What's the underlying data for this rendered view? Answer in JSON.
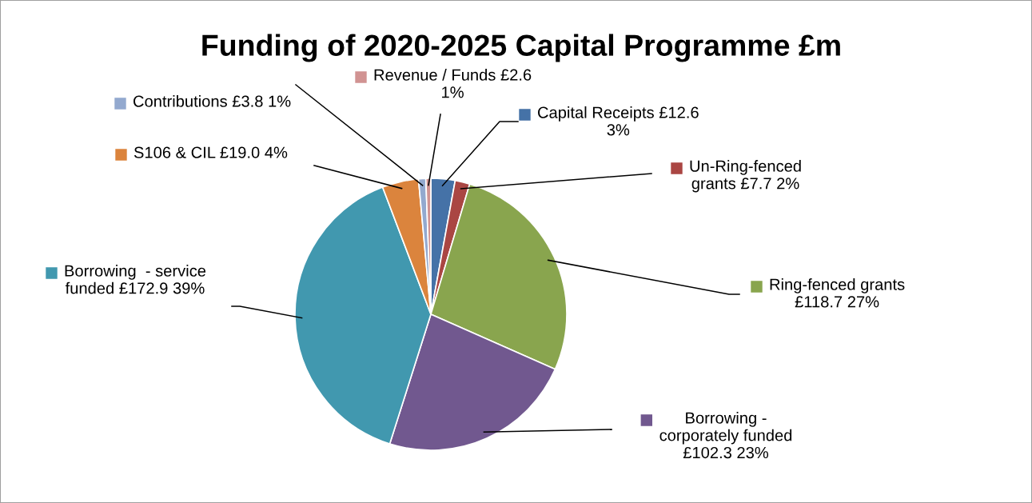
{
  "chart_data": {
    "type": "pie",
    "title": "Funding of 2020-2025 Capital Programme £m",
    "categories": [
      "Capital Receipts",
      "Un-Ring-fenced\ngrants",
      "Ring-fenced grants",
      "Borrowing -\ncorporately funded",
      "Borrowing  - service\nfunded",
      "S106 & CIL",
      "Contributions",
      "Revenue / Funds"
    ],
    "values": [
      12.6,
      7.7,
      118.7,
      102.3,
      172.9,
      19.0,
      3.8,
      2.6
    ],
    "value_labels": [
      "£12.6\n3%",
      "£7.7 2%",
      "£118.7 27%",
      "£102.3 23%",
      "£172.9 39%",
      "£19.0 4%",
      "£3.8 1%",
      "£2.6\n1%"
    ],
    "colors": [
      "#4572a7",
      "#aa4643",
      "#89a54e",
      "#71588f",
      "#4198af",
      "#db843d",
      "#93a9cf",
      "#d19392"
    ],
    "legend": "right"
  }
}
